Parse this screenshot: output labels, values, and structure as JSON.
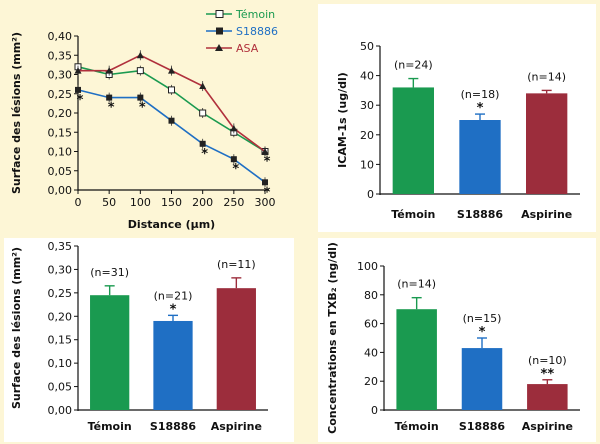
{
  "chart_data": [
    {
      "type": "line",
      "id": "lesion-by-distance",
      "xlabel": "Distance (µm)",
      "ylabel": "Surface des lésions (mm²)",
      "x": [
        0,
        50,
        100,
        150,
        200,
        250,
        300
      ],
      "xticks": [
        "0",
        "50",
        "100",
        "150",
        "200",
        "250",
        "300"
      ],
      "ylim": [
        0,
        0.4
      ],
      "yticks": [
        "0,00",
        "0,05",
        "0,10",
        "0,15",
        "0,20",
        "0,25",
        "0,30",
        "0,35",
        "0,40"
      ],
      "legend_position": "top-right",
      "series": [
        {
          "name": "Témoin",
          "color": "#1a9a50",
          "marker": "open-square",
          "values": [
            0.32,
            0.3,
            0.31,
            0.26,
            0.2,
            0.15,
            0.1
          ],
          "stars": [
            false,
            false,
            false,
            false,
            false,
            false,
            false
          ]
        },
        {
          "name": "S18886",
          "color": "#1f6fc4",
          "marker": "filled-square",
          "values": [
            0.26,
            0.24,
            0.24,
            0.18,
            0.12,
            0.08,
            0.02
          ],
          "stars": [
            true,
            true,
            true,
            false,
            true,
            true,
            true
          ]
        },
        {
          "name": "ASA",
          "color": "#b0303c",
          "marker": "triangle",
          "values": [
            0.31,
            0.31,
            0.35,
            0.31,
            0.27,
            0.16,
            0.1
          ],
          "stars": [
            false,
            false,
            false,
            false,
            false,
            false,
            true
          ]
        }
      ]
    },
    {
      "type": "bar",
      "id": "icam",
      "ylabel": "ICAM-1s (ug/dl)",
      "categories": [
        "Témoin",
        "S18886",
        "Aspirine"
      ],
      "values": [
        36,
        25,
        34
      ],
      "errors": [
        3,
        2,
        1
      ],
      "n_labels": [
        "(n=24)",
        "(n=18)",
        "(n=14)"
      ],
      "stars": [
        "",
        "*",
        ""
      ],
      "colors": [
        "#1a9a50",
        "#1f6fc4",
        "#9c2d3c"
      ],
      "ylim": [
        0,
        50
      ],
      "yticks": [
        "0",
        "10",
        "20",
        "30",
        "40",
        "50"
      ]
    },
    {
      "type": "bar",
      "id": "lesion-surface",
      "ylabel": "Surface des lésions (mm²)",
      "categories": [
        "Témoin",
        "S18886",
        "Aspirine"
      ],
      "values": [
        0.245,
        0.19,
        0.26
      ],
      "errors": [
        0.02,
        0.012,
        0.022
      ],
      "n_labels": [
        "(n=31)",
        "(n=21)",
        "(n=11)"
      ],
      "stars": [
        "",
        "*",
        ""
      ],
      "colors": [
        "#1a9a50",
        "#1f6fc4",
        "#9c2d3c"
      ],
      "ylim": [
        0,
        0.35
      ],
      "yticks": [
        "0,00",
        "0,05",
        "0,10",
        "0,15",
        "0,20",
        "0,25",
        "0,30",
        "0,35"
      ]
    },
    {
      "type": "bar",
      "id": "txb2",
      "ylabel": "Concentrations en TXB₂ (ng/dl)",
      "categories": [
        "Témoin",
        "S18886",
        "Aspirine"
      ],
      "values": [
        70,
        43,
        18
      ],
      "errors": [
        8,
        7,
        3
      ],
      "n_labels": [
        "(n=14)",
        "(n=15)",
        "(n=10)"
      ],
      "stars": [
        "",
        "*",
        "**"
      ],
      "colors": [
        "#1a9a50",
        "#1f6fc4",
        "#9c2d3c"
      ],
      "ylim": [
        0,
        100
      ],
      "yticks": [
        "0",
        "20",
        "40",
        "60",
        "80",
        "100"
      ]
    }
  ]
}
